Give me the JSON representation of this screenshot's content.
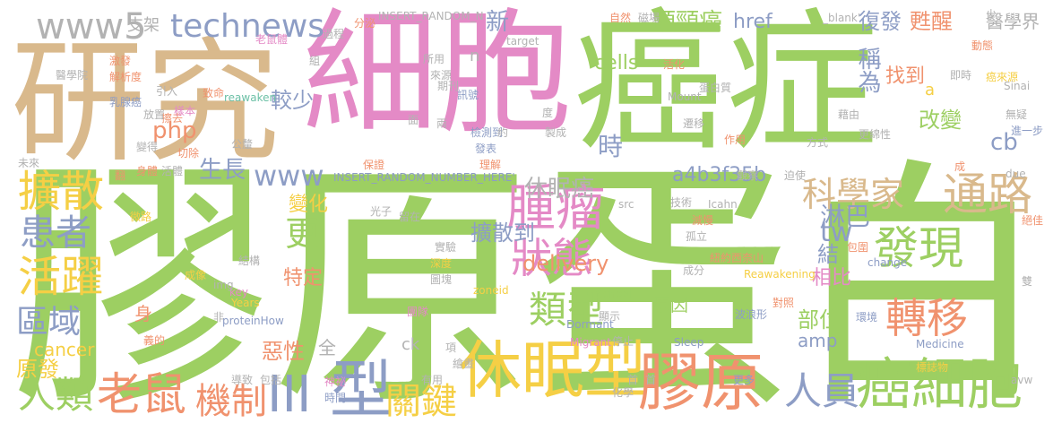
{
  "colors": {
    "green": "#9dcf62",
    "pink": "#e48ac6",
    "tan": "#d9b98c",
    "orange": "#f0926e",
    "yellow": "#f5cf45",
    "blue": "#8d9dc5",
    "gray": "#b2b2b2",
    "teal": "#6cc0a6"
  },
  "words": [
    {
      "text": "膠原蛋白",
      "color": "green"
    },
    {
      "text": "細胞",
      "color": "pink"
    },
    {
      "text": "癌症",
      "color": "green"
    },
    {
      "text": "研究",
      "color": "tan"
    },
    {
      "text": "休眠型",
      "color": "yellow"
    },
    {
      "text": "膠原",
      "color": "orange"
    },
    {
      "text": "癌細胞",
      "color": "green"
    },
    {
      "text": "老鼠",
      "color": "orange"
    },
    {
      "text": "型",
      "color": "blue"
    },
    {
      "text": "III",
      "color": "blue"
    },
    {
      "text": "擴散",
      "color": "yellow"
    },
    {
      "text": "腫瘤",
      "color": "pink"
    },
    {
      "text": "發現",
      "color": "green"
    },
    {
      "text": "活躍",
      "color": "yellow"
    },
    {
      "text": "轉移",
      "color": "orange"
    },
    {
      "text": "通路",
      "color": "tan"
    },
    {
      "text": "患者",
      "color": "blue"
    },
    {
      "text": "人類",
      "color": "green"
    },
    {
      "text": "機制",
      "color": "orange"
    },
    {
      "text": "關鍵",
      "color": "yellow"
    },
    {
      "text": "人員",
      "color": "blue"
    },
    {
      "text": "狀態",
      "color": "pink"
    },
    {
      "text": "類型",
      "color": "green"
    },
    {
      "text": "科學家",
      "color": "tan"
    },
    {
      "text": "區域",
      "color": "blue"
    },
    {
      "text": "technews",
      "color": "blue"
    },
    {
      "text": "www5",
      "color": "gray"
    },
    {
      "text": "www",
      "color": "blue"
    },
    {
      "text": "php",
      "color": "orange"
    },
    {
      "text": "較少",
      "color": "blue"
    },
    {
      "text": "生長",
      "color": "blue"
    },
    {
      "text": "更",
      "color": "green"
    },
    {
      "text": "tw",
      "color": "blue"
    },
    {
      "text": "delivery",
      "color": "orange"
    },
    {
      "text": "擴散到",
      "color": "blue"
    },
    {
      "text": "休眠癌",
      "color": "gray"
    },
    {
      "text": "a4b3f35b",
      "color": "blue"
    },
    {
      "text": "cells",
      "color": "green"
    },
    {
      "text": "頭頸癌",
      "color": "green"
    },
    {
      "text": "復發",
      "color": "blue"
    },
    {
      "text": "甦醒",
      "color": "orange"
    },
    {
      "text": "醫學界",
      "color": "gray"
    },
    {
      "text": "href",
      "color": "blue"
    },
    {
      "text": "新",
      "color": "blue"
    },
    {
      "text": "時",
      "color": "blue"
    },
    {
      "text": "找到",
      "color": "orange"
    },
    {
      "text": "稱為",
      "color": "blue"
    },
    {
      "text": "改變",
      "color": "green"
    },
    {
      "text": "cb",
      "color": "blue"
    },
    {
      "text": "淋巴",
      "color": "blue"
    },
    {
      "text": "變化",
      "color": "yellow"
    },
    {
      "text": "特定",
      "color": "orange"
    },
    {
      "text": "相比",
      "color": "pink"
    },
    {
      "text": "結",
      "color": "blue"
    },
    {
      "text": "部位",
      "color": "green"
    },
    {
      "text": "amp",
      "color": "blue"
    },
    {
      "text": "原因",
      "color": "green"
    },
    {
      "text": "惡性",
      "color": "orange"
    },
    {
      "text": "cancer",
      "color": "yellow"
    },
    {
      "text": "原發",
      "color": "yellow"
    },
    {
      "text": "ck",
      "color": "gray"
    },
    {
      "text": "支架",
      "color": "gray"
    },
    {
      "text": "全",
      "color": "gray"
    },
    {
      "text": "a",
      "color": "yellow"
    },
    {
      "text": "n",
      "color": "gray"
    },
    {
      "text": "醫學院",
      "color": "gray"
    },
    {
      "text": "乳腺癌",
      "color": "blue"
    },
    {
      "text": "激發",
      "color": "orange"
    },
    {
      "text": "解析度",
      "color": "orange"
    },
    {
      "text": "引入",
      "color": "gray"
    },
    {
      "text": "擦去",
      "color": "orange"
    },
    {
      "text": "放置",
      "color": "gray"
    },
    {
      "text": "樣本",
      "color": "pink"
    },
    {
      "text": "切除",
      "color": "orange"
    },
    {
      "text": "變得",
      "color": "gray"
    },
    {
      "text": "身體",
      "color": "orange"
    },
    {
      "text": "活體",
      "color": "gray"
    },
    {
      "text": "公釐",
      "color": "gray"
    },
    {
      "text": "微路",
      "color": "yellow"
    },
    {
      "text": "成像",
      "color": "yellow"
    },
    {
      "text": "身",
      "color": "orange"
    },
    {
      "text": "義的",
      "color": "orange"
    },
    {
      "text": "結構",
      "color": "gray"
    },
    {
      "text": "key",
      "color": "pink"
    },
    {
      "text": "Years",
      "color": "yellow"
    },
    {
      "text": "proteinHow",
      "color": "blue"
    },
    {
      "text": "img",
      "color": "gray"
    },
    {
      "text": "導致",
      "color": "gray"
    },
    {
      "text": "包括",
      "color": "gray"
    },
    {
      "text": "神祕",
      "color": "pink"
    },
    {
      "text": "時間",
      "color": "blue"
    },
    {
      "text": "有用",
      "color": "gray"
    },
    {
      "text": "INSERT_RANDOM_N",
      "color": "gray"
    },
    {
      "text": "INSERT_RANDOM_NUMBER_HERE'",
      "color": "blue"
    },
    {
      "text": "target",
      "color": "gray"
    },
    {
      "text": "reawaken",
      "color": "teal"
    },
    {
      "text": "Mount",
      "color": "gray"
    },
    {
      "text": "Sinai",
      "color": "gray"
    },
    {
      "text": "Icahn",
      "color": "gray"
    },
    {
      "text": "src",
      "color": "gray"
    },
    {
      "text": "zoneid",
      "color": "yellow"
    },
    {
      "text": "Dormant",
      "color": "blue"
    },
    {
      "text": "Migrant",
      "color": "pink"
    },
    {
      "text": "Sleep",
      "color": "blue"
    },
    {
      "text": "School",
      "color": "green"
    },
    {
      "text": "Reawakening",
      "color": "yellow"
    },
    {
      "text": "change",
      "color": "blue"
    },
    {
      "text": "Medicine",
      "color": "blue"
    },
    {
      "text": "due",
      "color": "gray"
    },
    {
      "text": "avw",
      "color": "gray"
    },
    {
      "text": "_blank'",
      "color": "gray"
    },
    {
      "text": "自然",
      "color": "orange"
    },
    {
      "text": "磁場",
      "color": "gray"
    },
    {
      "text": "活化",
      "color": "orange"
    },
    {
      "text": "即時",
      "color": "gray"
    },
    {
      "text": "動態",
      "color": "orange"
    },
    {
      "text": "癌來源",
      "color": "yellow"
    },
    {
      "text": "蛋白質",
      "color": "gray"
    },
    {
      "text": "遷移",
      "color": "gray"
    },
    {
      "text": "藉由",
      "color": "gray"
    },
    {
      "text": "更綿性",
      "color": "gray"
    },
    {
      "text": "無疑",
      "color": "gray"
    },
    {
      "text": "進一步",
      "color": "blue"
    },
    {
      "text": "作用",
      "color": "orange"
    },
    {
      "text": "方式",
      "color": "gray"
    },
    {
      "text": "觀察",
      "color": "gray"
    },
    {
      "text": "迫使",
      "color": "gray"
    },
    {
      "text": "成",
      "color": "orange"
    },
    {
      "text": "減慢",
      "color": "orange"
    },
    {
      "text": "孤立",
      "color": "gray"
    },
    {
      "text": "紐約西奈山",
      "color": "orange"
    },
    {
      "text": "對照",
      "color": "orange"
    },
    {
      "text": "波浪形",
      "color": "blue"
    },
    {
      "text": "環境",
      "color": "blue"
    },
    {
      "text": "標誌物",
      "color": "yellow"
    },
    {
      "text": "更多",
      "color": "blue"
    },
    {
      "text": "停止",
      "color": "gray"
    },
    {
      "text": "化學",
      "color": "gray"
    },
    {
      "text": "首",
      "color": "gray"
    },
    {
      "text": "雙",
      "color": "gray"
    },
    {
      "text": "絕佳",
      "color": "orange"
    },
    {
      "text": "包圍",
      "color": "orange"
    },
    {
      "text": "成分",
      "color": "gray"
    },
    {
      "text": "技術",
      "color": "gray"
    },
    {
      "text": "實驗",
      "color": "gray"
    },
    {
      "text": "深度",
      "color": "yellow"
    },
    {
      "text": "光子",
      "color": "gray"
    },
    {
      "text": "留在",
      "color": "gray"
    },
    {
      "text": "圖塊",
      "color": "gray"
    },
    {
      "text": "團隊",
      "color": "pink"
    },
    {
      "text": "顯示",
      "color": "gray"
    },
    {
      "text": "項",
      "color": "gray"
    },
    {
      "text": "繪畫",
      "color": "gray"
    },
    {
      "text": "檢測到",
      "color": "blue"
    },
    {
      "text": "發表",
      "color": "blue"
    },
    {
      "text": "理解",
      "color": "orange"
    },
    {
      "text": "保證",
      "color": "orange"
    },
    {
      "text": "製成",
      "color": "gray"
    },
    {
      "text": "期刊",
      "color": "gray"
    },
    {
      "text": "訊號",
      "color": "blue"
    },
    {
      "text": "約",
      "color": "gray"
    },
    {
      "text": "兩",
      "color": "gray"
    },
    {
      "text": "面",
      "color": "gray"
    },
    {
      "text": "度",
      "color": "gray"
    },
    {
      "text": "致命",
      "color": "orange"
    },
    {
      "text": "所用",
      "color": "gray"
    },
    {
      "text": "來源",
      "color": "gray"
    },
    {
      "text": "老鼠體",
      "color": "pink"
    },
    {
      "text": "組",
      "color": "gray"
    },
    {
      "text": "過程",
      "color": "gray"
    },
    {
      "text": "分泌",
      "color": "orange"
    },
    {
      "text": "未來",
      "color": "gray"
    },
    {
      "text": "翻",
      "color": "orange"
    },
    {
      "text": "少",
      "color": "gray"
    },
    {
      "text": "非",
      "color": "gray"
    },
    {
      "text": "首",
      "color": "gray"
    }
  ]
}
